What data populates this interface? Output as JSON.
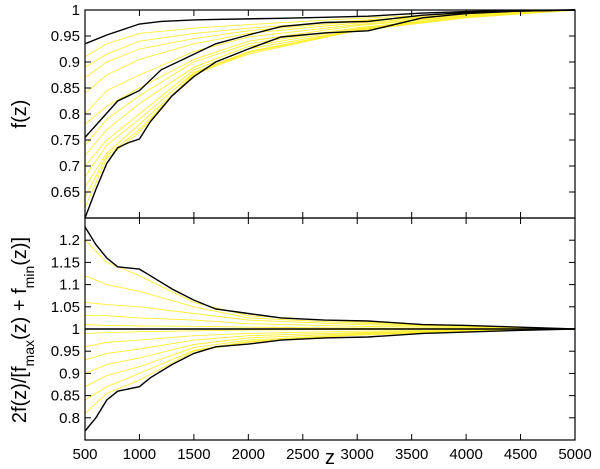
{
  "chart_data": [
    {
      "type": "line",
      "panel": "top",
      "title": "",
      "xlabel": "",
      "ylabel": "f(z)",
      "xlim": [
        500,
        5000
      ],
      "ylim": [
        0.6,
        1.0
      ],
      "yticks": [
        0.65,
        0.7,
        0.75,
        0.8,
        0.85,
        0.9,
        0.95,
        1.0
      ],
      "ytick_labels": [
        "0.65",
        "0.7",
        "0.75",
        "0.8",
        "0.85",
        "0.9",
        "0.95",
        "1"
      ],
      "grid": false,
      "series": [
        {
          "role": "envelope-max",
          "color": "#000000",
          "x": [
            500,
            700,
            1000,
            1200,
            1500,
            1700,
            2300,
            2700,
            3100,
            3600,
            4000,
            4500,
            5000
          ],
          "y": [
            0.935,
            0.952,
            0.973,
            0.978,
            0.981,
            0.982,
            0.984,
            0.986,
            0.988,
            0.994,
            0.997,
            0.999,
            1.0
          ]
        },
        {
          "role": "envelope-mid",
          "color": "#000000",
          "x": [
            500,
            800,
            1000,
            1200,
            1500,
            1700,
            2000,
            2300,
            2700,
            3100,
            3600,
            4000,
            4500,
            5000
          ],
          "y": [
            0.755,
            0.825,
            0.845,
            0.885,
            0.915,
            0.935,
            0.952,
            0.968,
            0.976,
            0.978,
            0.99,
            0.995,
            0.998,
            1.0
          ]
        },
        {
          "role": "envelope-min",
          "color": "#000000",
          "x": [
            500,
            600,
            700,
            800,
            900,
            1000,
            1100,
            1300,
            1500,
            1700,
            2000,
            2300,
            2700,
            3100,
            3600,
            4000,
            4500,
            5000
          ],
          "y": [
            0.6,
            0.655,
            0.705,
            0.735,
            0.745,
            0.752,
            0.785,
            0.835,
            0.872,
            0.9,
            0.925,
            0.948,
            0.956,
            0.96,
            0.985,
            0.993,
            0.998,
            1.0
          ]
        },
        {
          "role": "sample",
          "color": "#ffee33",
          "x": [
            500,
            700,
            1000,
            1500,
            2000,
            3000,
            4000,
            5000
          ],
          "y": [
            0.91,
            0.935,
            0.955,
            0.965,
            0.972,
            0.984,
            0.993,
            1.0
          ]
        },
        {
          "role": "sample",
          "color": "#ffee33",
          "x": [
            500,
            700,
            1000,
            1500,
            2000,
            3000,
            4000,
            5000
          ],
          "y": [
            0.89,
            0.915,
            0.94,
            0.955,
            0.965,
            0.98,
            0.992,
            1.0
          ]
        },
        {
          "role": "sample",
          "color": "#ffee33",
          "x": [
            500,
            700,
            1000,
            1500,
            2000,
            3000,
            4000,
            5000
          ],
          "y": [
            0.87,
            0.9,
            0.925,
            0.945,
            0.96,
            0.978,
            0.991,
            1.0
          ]
        },
        {
          "role": "sample",
          "color": "#ffee33",
          "x": [
            500,
            700,
            1000,
            1500,
            2000,
            3000,
            4000,
            5000
          ],
          "y": [
            0.84,
            0.875,
            0.905,
            0.935,
            0.955,
            0.975,
            0.99,
            1.0
          ]
        },
        {
          "role": "sample",
          "color": "#ffee33",
          "x": [
            500,
            700,
            1000,
            1500,
            2000,
            3000,
            4000,
            5000
          ],
          "y": [
            0.8,
            0.845,
            0.875,
            0.92,
            0.948,
            0.972,
            0.989,
            1.0
          ]
        },
        {
          "role": "sample",
          "color": "#ffee33",
          "x": [
            500,
            700,
            1000,
            1500,
            2000,
            3000,
            4000,
            5000
          ],
          "y": [
            0.78,
            0.815,
            0.85,
            0.905,
            0.94,
            0.97,
            0.988,
            1.0
          ]
        },
        {
          "role": "sample",
          "color": "#ffee33",
          "x": [
            500,
            700,
            1000,
            1500,
            2000,
            3000,
            4000,
            5000
          ],
          "y": [
            0.74,
            0.79,
            0.835,
            0.9,
            0.935,
            0.966,
            0.987,
            1.0
          ]
        },
        {
          "role": "sample",
          "color": "#ffee33",
          "x": [
            500,
            700,
            1000,
            1500,
            2000,
            3000,
            4000,
            5000
          ],
          "y": [
            0.72,
            0.77,
            0.82,
            0.89,
            0.93,
            0.964,
            0.986,
            1.0
          ]
        },
        {
          "role": "sample",
          "color": "#ffee33",
          "x": [
            500,
            700,
            1000,
            1500,
            2000,
            3000,
            4000,
            5000
          ],
          "y": [
            0.7,
            0.75,
            0.8,
            0.885,
            0.925,
            0.962,
            0.986,
            1.0
          ]
        },
        {
          "role": "sample",
          "color": "#ffee33",
          "x": [
            500,
            700,
            1000,
            1500,
            2000,
            3000,
            4000,
            5000
          ],
          "y": [
            0.68,
            0.74,
            0.79,
            0.88,
            0.92,
            0.961,
            0.985,
            1.0
          ]
        },
        {
          "role": "sample",
          "color": "#ffee33",
          "x": [
            500,
            700,
            1000,
            1500,
            2000,
            3000,
            4000,
            5000
          ],
          "y": [
            0.66,
            0.725,
            0.78,
            0.875,
            0.918,
            0.96,
            0.985,
            1.0
          ]
        },
        {
          "role": "sample",
          "color": "#ffee33",
          "x": [
            500,
            700,
            1000,
            1500,
            2000,
            3000,
            4000,
            5000
          ],
          "y": [
            0.64,
            0.72,
            0.77,
            0.878,
            0.915,
            0.961,
            0.986,
            1.0
          ]
        },
        {
          "role": "sample",
          "color": "#ffee33",
          "x": [
            500,
            700,
            1000,
            1500,
            2000,
            3000,
            4000,
            5000
          ],
          "y": [
            0.62,
            0.715,
            0.765,
            0.88,
            0.918,
            0.963,
            0.987,
            1.0
          ]
        }
      ]
    },
    {
      "type": "line",
      "panel": "bottom",
      "title": "",
      "xlabel": "z",
      "ylabel": "2f(z)/[fmax(z) + fmin(z)]",
      "ylabel_parts": [
        "2f(z)/[f",
        "max",
        "(z) + f",
        "min",
        "(z)]"
      ],
      "xlim": [
        500,
        5000
      ],
      "ylim": [
        0.75,
        1.25
      ],
      "xticks": [
        500,
        1000,
        1500,
        2000,
        2500,
        3000,
        3500,
        4000,
        4500,
        5000
      ],
      "xtick_labels": [
        "500",
        "1000",
        "1500",
        "2000",
        "2500",
        "3000",
        "3500",
        "4000",
        "4500",
        "5000"
      ],
      "yticks": [
        0.8,
        0.85,
        0.9,
        0.95,
        1.0,
        1.05,
        1.1,
        1.15,
        1.2
      ],
      "ytick_labels": [
        "0.8",
        "0.85",
        "0.9",
        "0.95",
        "1",
        "1.05",
        "1.1",
        "1.15",
        "1.2"
      ],
      "grid": false,
      "series": [
        {
          "role": "envelope-max",
          "color": "#000000",
          "x": [
            500,
            600,
            700,
            800,
            1000,
            1100,
            1300,
            1500,
            1700,
            2000,
            2300,
            2700,
            3100,
            3600,
            4000,
            4500,
            5000
          ],
          "y": [
            1.23,
            1.19,
            1.16,
            1.14,
            1.135,
            1.12,
            1.09,
            1.065,
            1.045,
            1.035,
            1.025,
            1.02,
            1.018,
            1.01,
            1.008,
            1.004,
            1.0
          ]
        },
        {
          "role": "envelope-mid",
          "color": "#000000",
          "x": [
            500,
            1000,
            2000,
            3000,
            4000,
            5000
          ],
          "y": [
            1.0,
            1.0,
            1.0,
            1.0,
            1.0,
            1.0
          ]
        },
        {
          "role": "envelope-min",
          "color": "#000000",
          "x": [
            500,
            600,
            700,
            800,
            1000,
            1100,
            1300,
            1500,
            1700,
            2000,
            2300,
            2700,
            3100,
            3600,
            4000,
            4500,
            5000
          ],
          "y": [
            0.77,
            0.8,
            0.84,
            0.86,
            0.87,
            0.89,
            0.92,
            0.945,
            0.96,
            0.966,
            0.975,
            0.98,
            0.982,
            0.99,
            0.993,
            0.997,
            1.0
          ]
        },
        {
          "role": "sample",
          "color": "#ffee33",
          "x": [
            500,
            700,
            1000,
            1500,
            2000,
            3000,
            4000,
            5000
          ],
          "y": [
            1.2,
            1.15,
            1.12,
            1.06,
            1.03,
            1.016,
            1.007,
            1.0
          ]
        },
        {
          "role": "sample",
          "color": "#ffee33",
          "x": [
            500,
            700,
            1000,
            1500,
            2000,
            3000,
            4000,
            5000
          ],
          "y": [
            1.12,
            1.1,
            1.085,
            1.05,
            1.025,
            1.013,
            1.006,
            1.0
          ]
        },
        {
          "role": "sample",
          "color": "#ffee33",
          "x": [
            500,
            700,
            1000,
            1500,
            2000,
            3000,
            4000,
            5000
          ],
          "y": [
            1.06,
            1.055,
            1.05,
            1.035,
            1.02,
            1.01,
            1.005,
            1.0
          ]
        },
        {
          "role": "sample",
          "color": "#ffee33",
          "x": [
            500,
            700,
            1000,
            1500,
            2000,
            3000,
            4000,
            5000
          ],
          "y": [
            1.03,
            1.03,
            1.025,
            1.02,
            1.012,
            1.006,
            1.003,
            1.0
          ]
        },
        {
          "role": "sample",
          "color": "#ffee33",
          "x": [
            500,
            700,
            1000,
            1500,
            2000,
            3000,
            4000,
            5000
          ],
          "y": [
            1.01,
            1.008,
            1.007,
            1.006,
            1.004,
            1.002,
            1.001,
            1.0
          ]
        },
        {
          "role": "sample",
          "color": "#ffee33",
          "x": [
            500,
            700,
            1000,
            1500,
            2000,
            3000,
            4000,
            5000
          ],
          "y": [
            0.99,
            0.992,
            0.994,
            0.996,
            0.998,
            0.999,
            1.0,
            1.0
          ]
        },
        {
          "role": "sample",
          "color": "#ffee33",
          "x": [
            500,
            700,
            1000,
            1500,
            2000,
            3000,
            4000,
            5000
          ],
          "y": [
            0.96,
            0.97,
            0.975,
            0.985,
            0.99,
            0.995,
            0.998,
            1.0
          ]
        },
        {
          "role": "sample",
          "color": "#ffee33",
          "x": [
            500,
            700,
            1000,
            1500,
            2000,
            3000,
            4000,
            5000
          ],
          "y": [
            0.93,
            0.945,
            0.955,
            0.975,
            0.985,
            0.992,
            0.997,
            1.0
          ]
        },
        {
          "role": "sample",
          "color": "#ffee33",
          "x": [
            500,
            700,
            1000,
            1500,
            2000,
            3000,
            4000,
            5000
          ],
          "y": [
            0.9,
            0.92,
            0.935,
            0.965,
            0.98,
            0.99,
            0.996,
            1.0
          ]
        },
        {
          "role": "sample",
          "color": "#ffee33",
          "x": [
            500,
            700,
            1000,
            1500,
            2000,
            3000,
            4000,
            5000
          ],
          "y": [
            0.87,
            0.895,
            0.915,
            0.958,
            0.975,
            0.988,
            0.995,
            1.0
          ]
        },
        {
          "role": "sample",
          "color": "#ffee33",
          "x": [
            500,
            700,
            1000,
            1500,
            2000,
            3000,
            4000,
            5000
          ],
          "y": [
            0.84,
            0.87,
            0.9,
            0.952,
            0.972,
            0.987,
            0.995,
            1.0
          ]
        },
        {
          "role": "sample",
          "color": "#ffee33",
          "x": [
            500,
            700,
            1000,
            1500,
            2000,
            3000,
            4000,
            5000
          ],
          "y": [
            0.81,
            0.855,
            0.885,
            0.95,
            0.97,
            0.986,
            0.994,
            1.0
          ]
        }
      ]
    }
  ]
}
